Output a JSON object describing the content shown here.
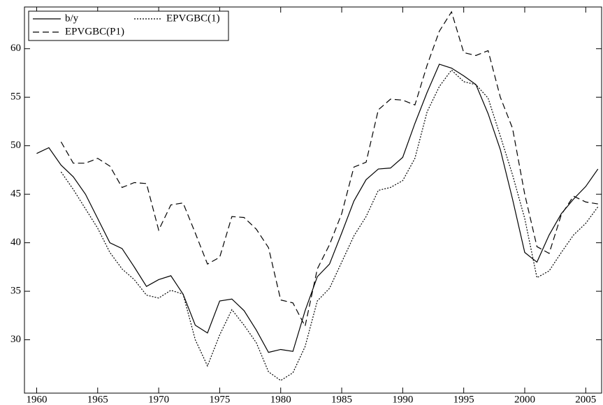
{
  "chart_data": {
    "type": "line",
    "x": [
      1960,
      1961,
      1962,
      1963,
      1964,
      1965,
      1966,
      1967,
      1968,
      1969,
      1970,
      1971,
      1972,
      1973,
      1974,
      1975,
      1976,
      1977,
      1978,
      1979,
      1980,
      1981,
      1982,
      1983,
      1984,
      1985,
      1986,
      1987,
      1988,
      1989,
      1990,
      1991,
      1992,
      1993,
      1994,
      1995,
      1996,
      1997,
      1998,
      1999,
      2000,
      2001,
      2002,
      2003,
      2004,
      2005,
      2006
    ],
    "series": [
      {
        "name": "b/y",
        "color": "#000000",
        "dash": "solid",
        "values": [
          49.2,
          49.8,
          48.0,
          46.8,
          45.0,
          42.5,
          40.0,
          39.4,
          37.5,
          35.5,
          36.2,
          36.6,
          34.7,
          31.5,
          30.7,
          34.0,
          34.2,
          33.0,
          31.0,
          28.7,
          29.0,
          28.8,
          33.0,
          36.5,
          37.8,
          41.0,
          44.3,
          46.5,
          47.6,
          47.7,
          48.8,
          52.3,
          55.5,
          58.4,
          58.0,
          57.2,
          56.3,
          53.3,
          49.6,
          44.5,
          39.0,
          38.0,
          40.8,
          43.0,
          44.5,
          45.8,
          47.6
        ]
      },
      {
        "name": "EPVGBC(1)",
        "color": "#000000",
        "dash": "dotted",
        "values": [
          null,
          null,
          47.3,
          45.5,
          43.5,
          41.5,
          39.0,
          37.3,
          36.2,
          34.6,
          34.3,
          35.1,
          34.7,
          30.0,
          27.3,
          30.5,
          33.1,
          31.5,
          29.7,
          26.7,
          25.8,
          26.6,
          29.3,
          34.0,
          35.3,
          38.0,
          40.7,
          42.7,
          45.4,
          45.7,
          46.4,
          48.7,
          53.5,
          56.1,
          57.8,
          56.6,
          56.3,
          54.9,
          51.0,
          47.0,
          42.5,
          36.4,
          37.1,
          39.0,
          40.8,
          42.0,
          43.7
        ]
      },
      {
        "name": "EPVGBC(P1)",
        "color": "#000000",
        "dash": "dashed",
        "values": [
          null,
          null,
          50.4,
          48.2,
          48.2,
          48.7,
          47.9,
          45.7,
          46.2,
          46.1,
          41.3,
          43.9,
          44.1,
          41.0,
          37.8,
          38.5,
          42.7,
          42.6,
          41.4,
          39.5,
          34.1,
          33.8,
          31.4,
          37.3,
          39.8,
          43.0,
          47.8,
          48.3,
          53.7,
          54.8,
          54.7,
          54.2,
          58.3,
          61.8,
          63.8,
          59.6,
          59.3,
          59.8,
          55.0,
          51.8,
          45.0,
          39.6,
          38.9,
          42.9,
          44.8,
          44.2,
          44.0
        ]
      }
    ],
    "xlim": [
      1959,
      2006.3
    ],
    "xticks": [
      1960,
      1965,
      1970,
      1975,
      1980,
      1985,
      1990,
      1995,
      2000,
      2005
    ],
    "ylim": [
      24.5,
      64.3
    ],
    "yticks": [
      30,
      35,
      40,
      45,
      50,
      55,
      60
    ],
    "legend": "top-left"
  }
}
